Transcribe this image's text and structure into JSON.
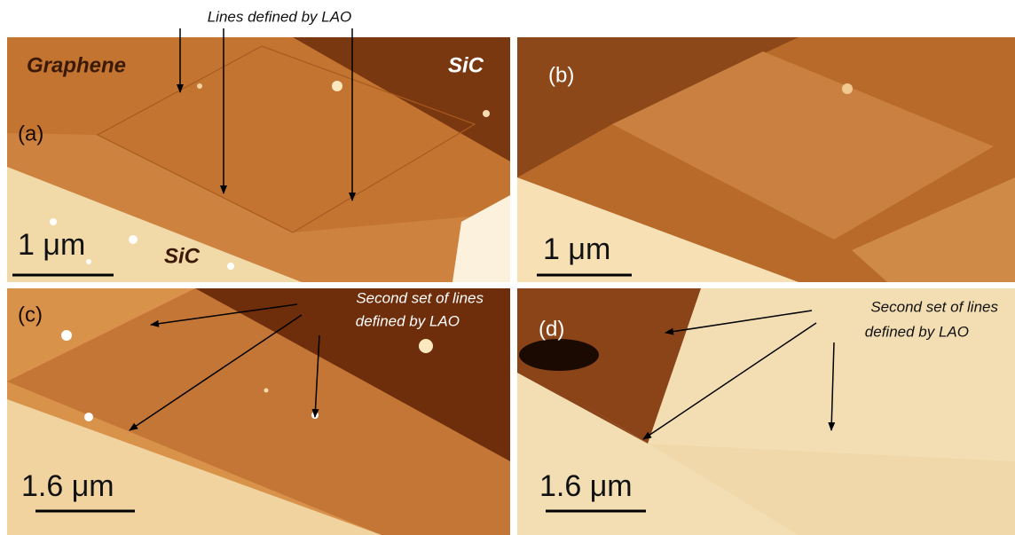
{
  "annotation": "Lines defined by LAO",
  "panels": [
    {
      "label": "(a)",
      "scale_bar": "1 μm",
      "regions": [
        "Graphene",
        "SiC",
        "SiC"
      ]
    },
    {
      "label": "(b)",
      "scale_bar": "1 μm"
    },
    {
      "label": "(c)",
      "scale_bar": "1.6 μm",
      "annotation": [
        "Second set of lines",
        "defined by LAO"
      ]
    },
    {
      "label": "(d)",
      "scale_bar": "1.6 μm",
      "annotation": [
        "Second set of lines",
        "defined by LAO"
      ]
    }
  ]
}
